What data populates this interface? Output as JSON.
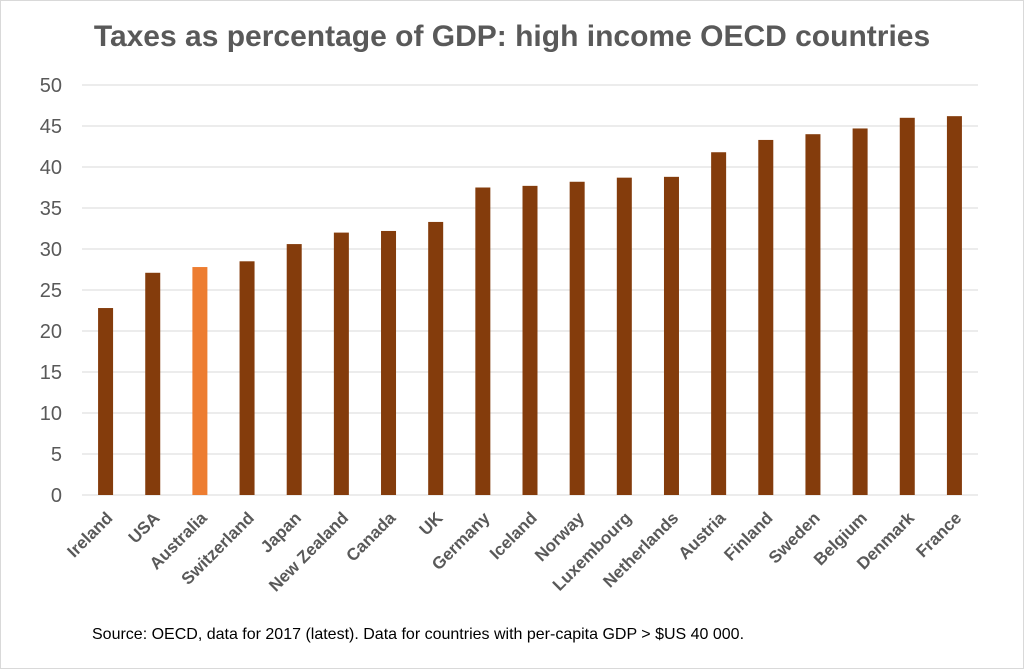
{
  "chart_data": {
    "type": "bar",
    "title": "Taxes as percentage of GDP: high income OECD countries",
    "xlabel": "",
    "ylabel": "",
    "ylim": [
      0,
      50
    ],
    "yticks": [
      0,
      5,
      10,
      15,
      20,
      25,
      30,
      35,
      40,
      45,
      50
    ],
    "grid": true,
    "legend": "none",
    "categories": [
      "Ireland",
      "USA",
      "Australia",
      "Switzerland",
      "Japan",
      "New Zealand",
      "Canada",
      "UK",
      "Germany",
      "Iceland",
      "Norway",
      "Luxembourg",
      "Netherlands",
      "Austria",
      "Finland",
      "Sweden",
      "Belgium",
      "Denmark",
      "France"
    ],
    "values": [
      22.8,
      27.1,
      27.8,
      28.5,
      30.6,
      32.0,
      32.2,
      33.3,
      37.5,
      37.7,
      38.2,
      38.7,
      38.8,
      41.8,
      43.3,
      44.0,
      44.7,
      46.0,
      46.2
    ],
    "colors": {
      "default": "#843c0c",
      "highlight": "#ed7d31",
      "highlight_category": "Australia",
      "grid": "#d9d9d9",
      "text": "#595959"
    }
  },
  "source_note": "Source: OECD, data for 2017 (latest). Data for countries with per-capita GDP > $US 40 000."
}
